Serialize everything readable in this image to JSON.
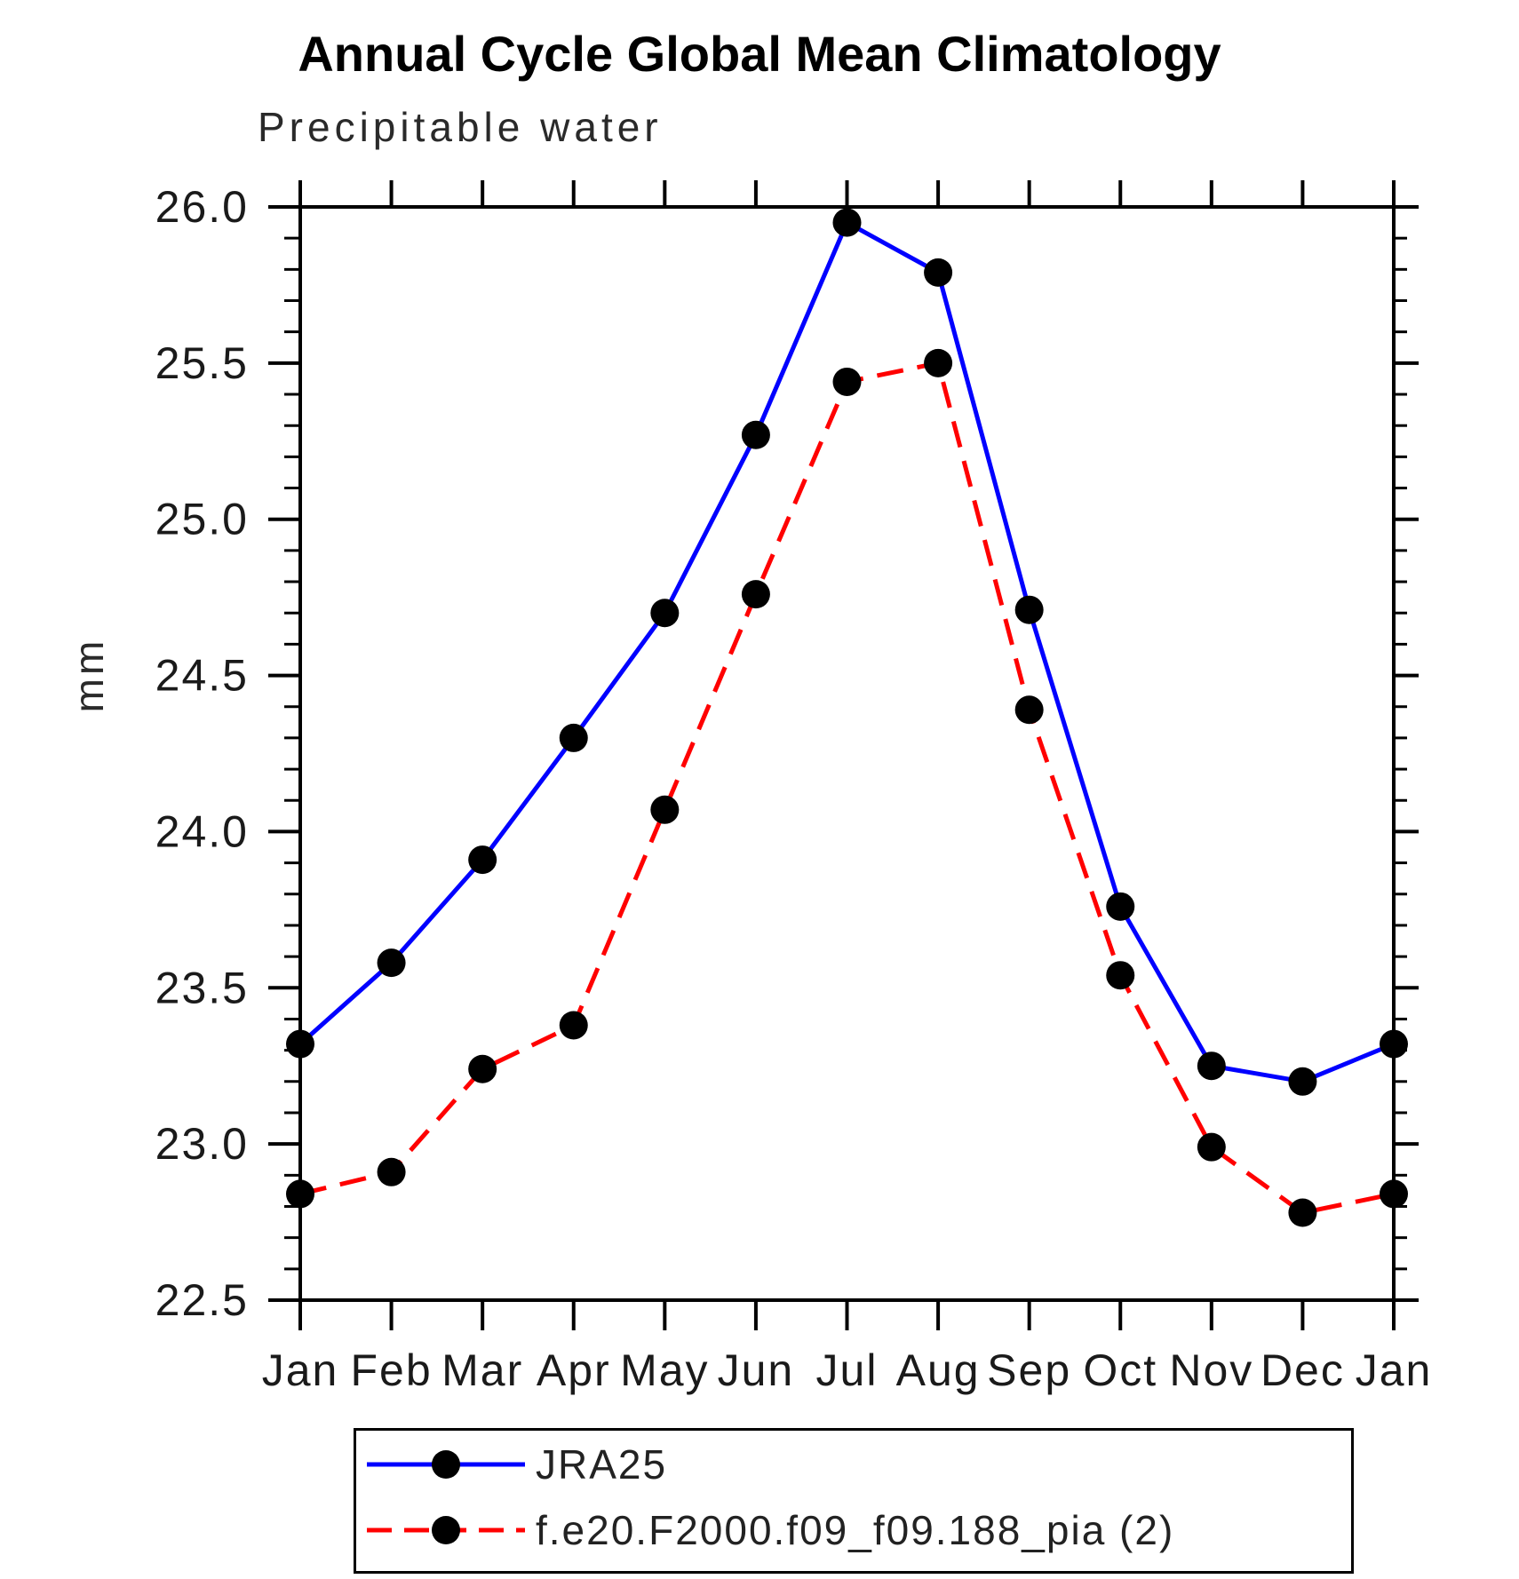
{
  "chart_data": {
    "type": "line",
    "title": "Annual Cycle Global Mean Climatology",
    "subtitle": "Precipitable water",
    "ylabel": "mm",
    "xlabel": "",
    "categories": [
      "Jan",
      "Feb",
      "Mar",
      "Apr",
      "May",
      "Jun",
      "Jul",
      "Aug",
      "Sep",
      "Oct",
      "Nov",
      "Dec",
      "Jan"
    ],
    "ylim": [
      22.5,
      26.0
    ],
    "ytick_step": 0.5,
    "ytick_minor_step": 0.1,
    "ytick_labels": [
      "22.5",
      "23.0",
      "23.5",
      "24.0",
      "24.5",
      "25.0",
      "25.5",
      "26.0"
    ],
    "grid": false,
    "legend_position": "bottom",
    "series": [
      {
        "name": "JRA25",
        "color": "#0000ff",
        "line_style": "solid",
        "marker": "circle",
        "marker_color": "#000000",
        "values": [
          23.32,
          23.58,
          23.91,
          24.3,
          24.7,
          25.27,
          25.95,
          25.79,
          24.71,
          23.76,
          23.25,
          23.2,
          23.32
        ]
      },
      {
        "name": "f.e20.F2000.f09_f09.188_pia (2)",
        "color": "#ff0000",
        "line_style": "dashed",
        "marker": "circle",
        "marker_color": "#000000",
        "values": [
          22.84,
          22.91,
          23.24,
          23.38,
          24.07,
          24.76,
          25.44,
          25.5,
          24.39,
          23.54,
          22.99,
          22.78,
          22.84
        ]
      }
    ]
  },
  "colors": {
    "axis": "#000000",
    "tick_text": "#1a1a1a"
  }
}
